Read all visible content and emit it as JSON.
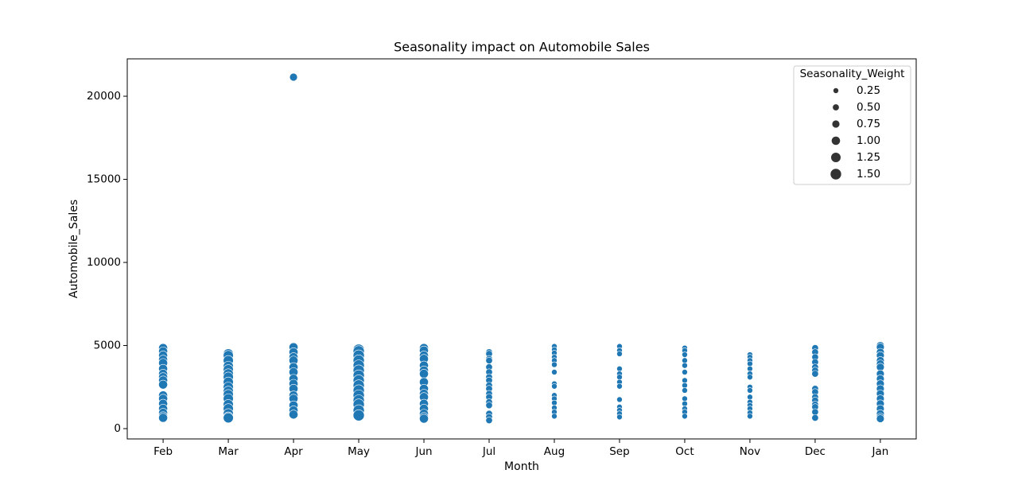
{
  "chart_data": {
    "type": "scatter",
    "title": "Seasonality impact on Automobile Sales",
    "x_label": "Month",
    "y_label": "Automobile_Sales",
    "categories": [
      "Feb",
      "Mar",
      "Apr",
      "May",
      "Jun",
      "Jul",
      "Aug",
      "Sep",
      "Oct",
      "Nov",
      "Dec",
      "Jan"
    ],
    "color": "#1f77b4",
    "ylim": [
      -620,
      22250
    ],
    "yticks": [
      0,
      5000,
      10000,
      15000,
      20000
    ],
    "legend": {
      "title": "Seasonality_Weight",
      "position": "upper right",
      "sizes": [
        {
          "value": 0.25,
          "label": "0.25"
        },
        {
          "value": 0.5,
          "label": "0.50"
        },
        {
          "value": 0.75,
          "label": "0.75"
        },
        {
          "value": 1,
          "label": "1.00"
        },
        {
          "value": 1.25,
          "label": "1.25"
        },
        {
          "value": 1.5,
          "label": "1.50"
        }
      ]
    },
    "x": [
      "Feb",
      "Feb",
      "Feb",
      "Feb",
      "Feb",
      "Feb",
      "Feb",
      "Feb",
      "Feb",
      "Feb",
      "Feb",
      "Feb",
      "Feb",
      "Feb",
      "Feb",
      "Feb",
      "Feb",
      "Mar",
      "Mar",
      "Mar",
      "Mar",
      "Mar",
      "Mar",
      "Mar",
      "Mar",
      "Mar",
      "Mar",
      "Mar",
      "Mar",
      "Mar",
      "Mar",
      "Mar",
      "Mar",
      "Mar",
      "Apr",
      "Apr",
      "Apr",
      "Apr",
      "Apr",
      "Apr",
      "Apr",
      "Apr",
      "Apr",
      "Apr",
      "Apr",
      "Apr",
      "Apr",
      "Apr",
      "Apr",
      "May",
      "May",
      "May",
      "May",
      "May",
      "May",
      "May",
      "May",
      "May",
      "May",
      "May",
      "May",
      "May",
      "May",
      "May",
      "Jun",
      "Jun",
      "Jun",
      "Jun",
      "Jun",
      "Jun",
      "Jun",
      "Jun",
      "Jun",
      "Jun",
      "Jun",
      "Jun",
      "Jun",
      "Jun",
      "Jun",
      "Jun",
      "Jul",
      "Jul",
      "Jul",
      "Jul",
      "Jul",
      "Jul",
      "Jul",
      "Jul",
      "Jul",
      "Jul",
      "Jul",
      "Jul",
      "Jul",
      "Jul",
      "Jul",
      "Jul",
      "Jul",
      "Aug",
      "Aug",
      "Aug",
      "Aug",
      "Aug",
      "Aug",
      "Aug",
      "Aug",
      "Aug",
      "Aug",
      "Aug",
      "Aug",
      "Aug",
      "Aug",
      "Aug",
      "Sep",
      "Sep",
      "Sep",
      "Sep",
      "Sep",
      "Sep",
      "Sep",
      "Sep",
      "Sep",
      "Sep",
      "Sep",
      "Sep",
      "Sep",
      "Oct",
      "Oct",
      "Oct",
      "Oct",
      "Oct",
      "Oct",
      "Oct",
      "Oct",
      "Oct",
      "Oct",
      "Oct",
      "Oct",
      "Oct",
      "Oct",
      "Nov",
      "Nov",
      "Nov",
      "Nov",
      "Nov",
      "Nov",
      "Nov",
      "Nov",
      "Nov",
      "Nov",
      "Nov",
      "Nov",
      "Nov",
      "Nov",
      "Nov",
      "Dec",
      "Dec",
      "Dec",
      "Dec",
      "Dec",
      "Dec",
      "Dec",
      "Dec",
      "Dec",
      "Dec",
      "Dec",
      "Dec",
      "Dec",
      "Dec",
      "Dec",
      "Jan",
      "Jan",
      "Jan",
      "Jan",
      "Jan",
      "Jan",
      "Jan",
      "Jan",
      "Jan",
      "Jan",
      "Jan",
      "Jan",
      "Jan",
      "Jan",
      "Jan",
      "Jan",
      "Jan",
      "Jan"
    ],
    "y": [
      4850,
      4650,
      4400,
      4150,
      3950,
      3600,
      3300,
      3100,
      2900,
      2650,
      2000,
      1800,
      1500,
      1200,
      950,
      750,
      650,
      4500,
      4400,
      4100,
      3750,
      3550,
      3300,
      3100,
      2800,
      2500,
      2250,
      2050,
      1800,
      1450,
      1200,
      900,
      700,
      650,
      21150,
      4900,
      4600,
      4300,
      4100,
      3700,
      3400,
      3000,
      2700,
      2400,
      2000,
      1800,
      1400,
      1100,
      850,
      4750,
      4650,
      4400,
      4100,
      3800,
      3500,
      3200,
      2900,
      2600,
      2300,
      2000,
      1700,
      1450,
      1100,
      800,
      4850,
      4700,
      4400,
      4200,
      3800,
      3500,
      3300,
      2800,
      2400,
      2100,
      1900,
      1500,
      1200,
      900,
      700,
      600,
      4600,
      4500,
      4200,
      4100,
      3700,
      3400,
      3100,
      2900,
      2600,
      2400,
      2100,
      1900,
      1600,
      1400,
      900,
      700,
      500,
      4950,
      4750,
      4550,
      4300,
      4100,
      3850,
      3400,
      2700,
      2550,
      2000,
      1800,
      1550,
      1250,
      1000,
      750,
      4950,
      4700,
      4500,
      3600,
      3300,
      3100,
      2800,
      2550,
      1750,
      1300,
      1100,
      900,
      700,
      4850,
      4700,
      4450,
      4100,
      3800,
      3400,
      2900,
      2600,
      2300,
      1800,
      1500,
      1200,
      1000,
      750,
      4450,
      4300,
      4100,
      3900,
      3600,
      3300,
      3100,
      2500,
      2300,
      1900,
      1600,
      1400,
      1200,
      950,
      750,
      4850,
      4600,
      4300,
      4000,
      3700,
      3500,
      3300,
      2400,
      2200,
      1900,
      1700,
      1450,
      1300,
      1000,
      650,
      5000,
      4900,
      4600,
      4400,
      4100,
      3900,
      3700,
      3300,
      3000,
      2700,
      2400,
      2100,
      1800,
      1500,
      1200,
      900,
      700,
      600
    ],
    "sizes": [
      1,
      1,
      1,
      1,
      1,
      1,
      1,
      1,
      1,
      1,
      1,
      1,
      1,
      1,
      1,
      1,
      1,
      1.25,
      1.25,
      1.25,
      1.25,
      1.25,
      1.25,
      1.25,
      1.25,
      1.25,
      1.25,
      1.25,
      1.25,
      1.25,
      1.25,
      1.25,
      1.25,
      1.25,
      0.75,
      1,
      1,
      1,
      1,
      1,
      1,
      1,
      1,
      1,
      1,
      1,
      1,
      1,
      1,
      1.5,
      1.5,
      1.5,
      1.5,
      1.5,
      1.5,
      1.5,
      1.5,
      1.5,
      1.5,
      1.5,
      1.5,
      1.5,
      1.5,
      1.5,
      1,
      1,
      1,
      1,
      1,
      1,
      1,
      1,
      1,
      1,
      1,
      1,
      1,
      1,
      1,
      1,
      0.5,
      0.5,
      0.5,
      0.5,
      0.5,
      0.5,
      0.5,
      0.5,
      0.5,
      0.5,
      0.5,
      0.5,
      0.5,
      0.5,
      0.5,
      0.5,
      0.5,
      0.25,
      0.25,
      0.25,
      0.25,
      0.25,
      0.25,
      0.25,
      0.25,
      0.25,
      0.25,
      0.25,
      0.25,
      0.25,
      0.25,
      0.25,
      0.25,
      0.25,
      0.25,
      0.25,
      0.25,
      0.25,
      0.25,
      0.25,
      0.25,
      0.25,
      0.25,
      0.25,
      0.25,
      0.25,
      0.25,
      0.25,
      0.25,
      0.25,
      0.25,
      0.25,
      0.25,
      0.25,
      0.25,
      0.25,
      0.25,
      0.25,
      0.25,
      0.25,
      0.25,
      0.25,
      0.25,
      0.25,
      0.25,
      0.25,
      0.25,
      0.25,
      0.25,
      0.25,
      0.25,
      0.25,
      0.25,
      0.25,
      0.5,
      0.5,
      0.5,
      0.5,
      0.5,
      0.5,
      0.5,
      0.5,
      0.5,
      0.5,
      0.5,
      0.5,
      0.5,
      0.5,
      0.5,
      0.75,
      0.75,
      0.75,
      0.75,
      0.75,
      0.75,
      0.75,
      0.75,
      0.75,
      0.75,
      0.75,
      0.75,
      0.75,
      0.75,
      0.75,
      0.75,
      0.75,
      0.75
    ]
  }
}
